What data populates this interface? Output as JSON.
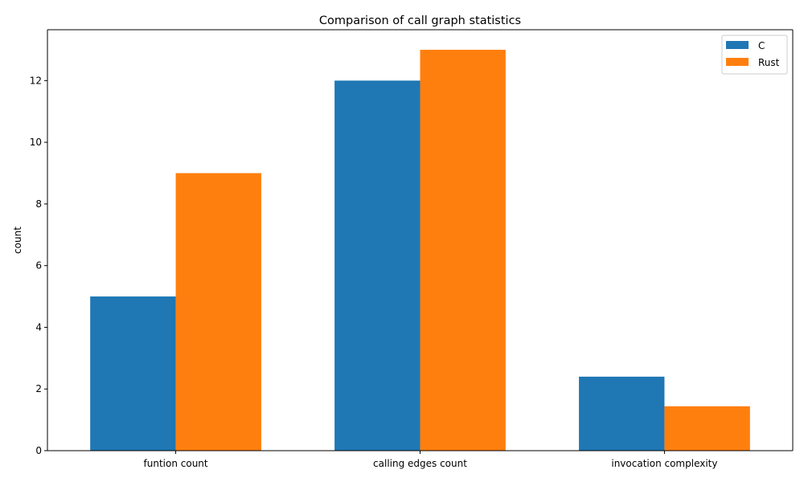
{
  "chart_data": {
    "type": "bar",
    "title": "Comparison of call graph statistics",
    "xlabel": "",
    "ylabel": "count",
    "categories": [
      "funtion count",
      "calling edges count",
      "invocation complexity"
    ],
    "series": [
      {
        "name": "C",
        "values": [
          5,
          12,
          2.4
        ],
        "color": "#1f77b4"
      },
      {
        "name": "Rust",
        "values": [
          9,
          13,
          1.44
        ],
        "color": "#ff7f0e"
      }
    ],
    "ylim": [
      0,
      13.65
    ],
    "yticks": [
      0,
      2,
      4,
      6,
      8,
      10,
      12
    ],
    "grid": false,
    "legend_position": "top-right"
  }
}
